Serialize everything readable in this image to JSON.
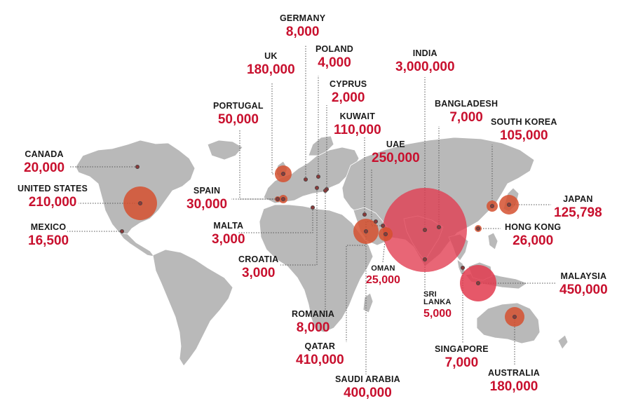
{
  "colors": {
    "land": "#b9b9b9",
    "bubble": "#e23b4f",
    "bubble_dark": "#d5502f",
    "value_text": "#c8102e",
    "label_text": "#1a1a1a",
    "leader_line": "#555555"
  },
  "countries": [
    {
      "key": "germany",
      "name": "GERMANY",
      "value": "8,000",
      "value_num": 8000
    },
    {
      "key": "poland",
      "name": "POLAND",
      "value": "4,000",
      "value_num": 4000
    },
    {
      "key": "uk",
      "name": "UK",
      "value": "180,000",
      "value_num": 180000
    },
    {
      "key": "india",
      "name": "INDIA",
      "value": "3,000,000",
      "value_num": 3000000
    },
    {
      "key": "cyprus",
      "name": "CYPRUS",
      "value": "2,000",
      "value_num": 2000
    },
    {
      "key": "portugal",
      "name": "PORTUGAL",
      "value": "50,000",
      "value_num": 50000
    },
    {
      "key": "bangladesh",
      "name": "BANGLADESH",
      "value": "7,000",
      "value_num": 7000
    },
    {
      "key": "kuwait",
      "name": "KUWAIT",
      "value": "110,000",
      "value_num": 110000
    },
    {
      "key": "south_korea",
      "name": "SOUTH KOREA",
      "value": "105,000",
      "value_num": 105000
    },
    {
      "key": "uae",
      "name": "UAE",
      "value": "250,000",
      "value_num": 250000
    },
    {
      "key": "canada",
      "name": "CANADA",
      "value": "20,000",
      "value_num": 20000
    },
    {
      "key": "united_states",
      "name": "UNITED STATES",
      "value": "210,000",
      "value_num": 210000
    },
    {
      "key": "spain",
      "name": "SPAIN",
      "value": "30,000",
      "value_num": 30000
    },
    {
      "key": "japan",
      "name": "JAPAN",
      "value": "125,798",
      "value_num": 125798
    },
    {
      "key": "mexico",
      "name": "MEXICO",
      "value": "16,500",
      "value_num": 16500
    },
    {
      "key": "malta",
      "name": "MALTA",
      "value": "3,000",
      "value_num": 3000
    },
    {
      "key": "hong_kong",
      "name": "HONG KONG",
      "value": "26,000",
      "value_num": 26000
    },
    {
      "key": "croatia",
      "name": "CROATIA",
      "value": "3,000",
      "value_num": 3000
    },
    {
      "key": "oman",
      "name": "OMAN",
      "value": "25,000",
      "value_num": 25000
    },
    {
      "key": "malaysia",
      "name": "MALAYSIA",
      "value": "450,000",
      "value_num": 450000
    },
    {
      "key": "sri_lanka",
      "name": "SRI LANKA",
      "value": "5,000",
      "value_num": 5000
    },
    {
      "key": "romania",
      "name": "ROMANIA",
      "value": "8,000",
      "value_num": 8000
    },
    {
      "key": "qatar",
      "name": "QATAR",
      "value": "410,000",
      "value_num": 410000
    },
    {
      "key": "singapore",
      "name": "SINGAPORE",
      "value": "7,000",
      "value_num": 7000
    },
    {
      "key": "saudi_arabia",
      "name": "SAUDI ARABIA",
      "value": "400,000",
      "value_num": 400000
    },
    {
      "key": "australia",
      "name": "AUSTRALIA",
      "value": "180,000",
      "value_num": 180000
    }
  ]
}
